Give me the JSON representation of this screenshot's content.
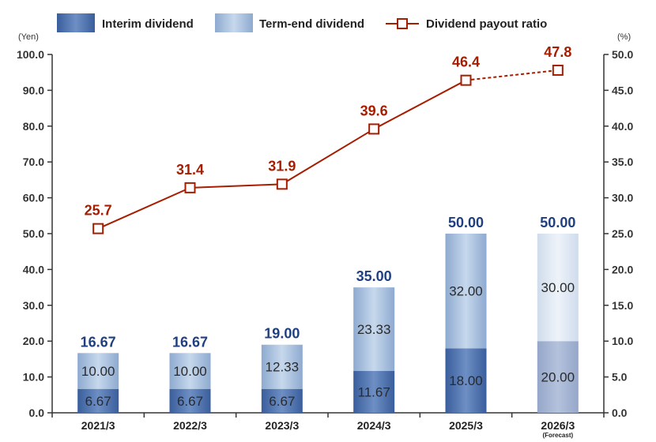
{
  "chart_data": {
    "type": "bar",
    "stacked": true,
    "categories": [
      "2021/3",
      "2022/3",
      "2023/3",
      "2024/3",
      "2025/3",
      "2026/3"
    ],
    "category_notes": [
      "",
      "",
      "",
      "",
      "",
      "(Forecast)"
    ],
    "series": [
      {
        "name": "Interim dividend",
        "axis": "left",
        "values": [
          6.67,
          6.67,
          6.67,
          11.67,
          18.0,
          20.0
        ],
        "labels": [
          "6.67",
          "6.67",
          "6.67",
          "11.67",
          "18.00",
          "20.00"
        ]
      },
      {
        "name": "Term-end dividend",
        "axis": "left",
        "values": [
          10.0,
          10.0,
          12.33,
          23.33,
          32.0,
          30.0
        ],
        "labels": [
          "10.00",
          "10.00",
          "12.33",
          "23.33",
          "32.00",
          "30.00"
        ]
      },
      {
        "name": "Dividend payout ratio",
        "axis": "right",
        "type": "line",
        "values": [
          25.7,
          31.4,
          31.9,
          39.6,
          46.4,
          47.8
        ],
        "labels": [
          "25.7",
          "31.4",
          "31.9",
          "39.6",
          "46.4",
          "47.8"
        ],
        "dashed_from_index": 4
      }
    ],
    "totals": [
      16.67,
      16.67,
      19.0,
      35.0,
      50.0,
      50.0
    ],
    "total_labels": [
      "16.67",
      "16.67",
      "19.00",
      "35.00",
      "50.00",
      "50.00"
    ],
    "forecast_index": 5,
    "ylabel": "(Yen)",
    "ylim": [
      0,
      100
    ],
    "yticks": [
      "0.0",
      "10.0",
      "20.0",
      "30.0",
      "40.0",
      "50.0",
      "60.0",
      "70.0",
      "80.0",
      "90.0",
      "100.0"
    ],
    "y2label": "(%)",
    "y2lim": [
      0,
      50
    ],
    "y2ticks": [
      "0.0",
      "5.0",
      "10.0",
      "15.0",
      "20.0",
      "25.0",
      "30.0",
      "35.0",
      "40.0",
      "45.0",
      "50.0"
    ],
    "grid": false,
    "legend_position": "top",
    "colors": {
      "interim": "#3e66a5",
      "term_end": "#98b5d8",
      "interim_forecast": "#98a8cb",
      "term_end_forecast": "#d3e1ef",
      "ratio_line": "#a61d00",
      "total_label": "#1f3f7f",
      "axis": "#333333"
    }
  }
}
